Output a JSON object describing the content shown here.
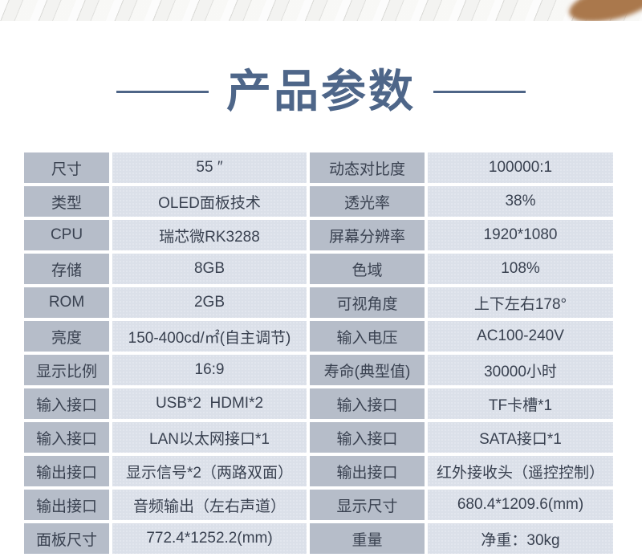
{
  "title": {
    "text": "产品参数"
  },
  "colors": {
    "title_text": "#4e6689",
    "title_line": "#4e6587",
    "label_cell_bg": "#b6bdc9",
    "value_cell_bg": "#dbe0e9",
    "cell_text": "#394150",
    "top_band_bg": "#ebebe9",
    "top_band_wood": "#aa784c"
  },
  "table": {
    "rows": [
      {
        "label_left": "尺寸",
        "value_left": "55 ″",
        "label_right": "动态对比度",
        "value_right": "100000:1"
      },
      {
        "label_left": "类型",
        "value_left": "OLED面板技术",
        "label_right": "透光率",
        "value_right": "38%"
      },
      {
        "label_left": "CPU",
        "value_left": "瑞芯微RK3288",
        "label_right": "屏幕分辨率",
        "value_right": "1920*1080"
      },
      {
        "label_left": "存储",
        "value_left": "8GB",
        "label_right": "色域",
        "value_right": "108%"
      },
      {
        "label_left": "ROM",
        "value_left": "2GB",
        "label_right": "可视角度",
        "value_right": "上下左右178°"
      },
      {
        "label_left": "亮度",
        "value_left": "150-400cd/㎡(自主调节)",
        "label_right": "输入电压",
        "value_right": "AC100-240V"
      },
      {
        "label_left": "显示比例",
        "value_left": "16:9",
        "label_right": "寿命(典型值)",
        "value_right": "30000小时"
      },
      {
        "label_left": "输入接口",
        "value_left": "USB*2  HDMI*2",
        "label_right": "输入接口",
        "value_right": "TF卡槽*1"
      },
      {
        "label_left": "输入接口",
        "value_left": "LAN以太网接口*1",
        "label_right": "输入接口",
        "value_right": "SATA接口*1"
      },
      {
        "label_left": "输出接口",
        "value_left": "显示信号*2（两路双面）",
        "label_right": "输出接口",
        "value_right": "红外接收头（遥控控制）"
      },
      {
        "label_left": "输出接口",
        "value_left": "音频输出（左右声道）",
        "label_right": "显示尺寸",
        "value_right": "680.4*1209.6(mm)"
      },
      {
        "label_left": "面板尺寸",
        "value_left": "772.4*1252.2(mm)",
        "label_right": "重量",
        "value_right": "净重：30kg"
      }
    ]
  }
}
